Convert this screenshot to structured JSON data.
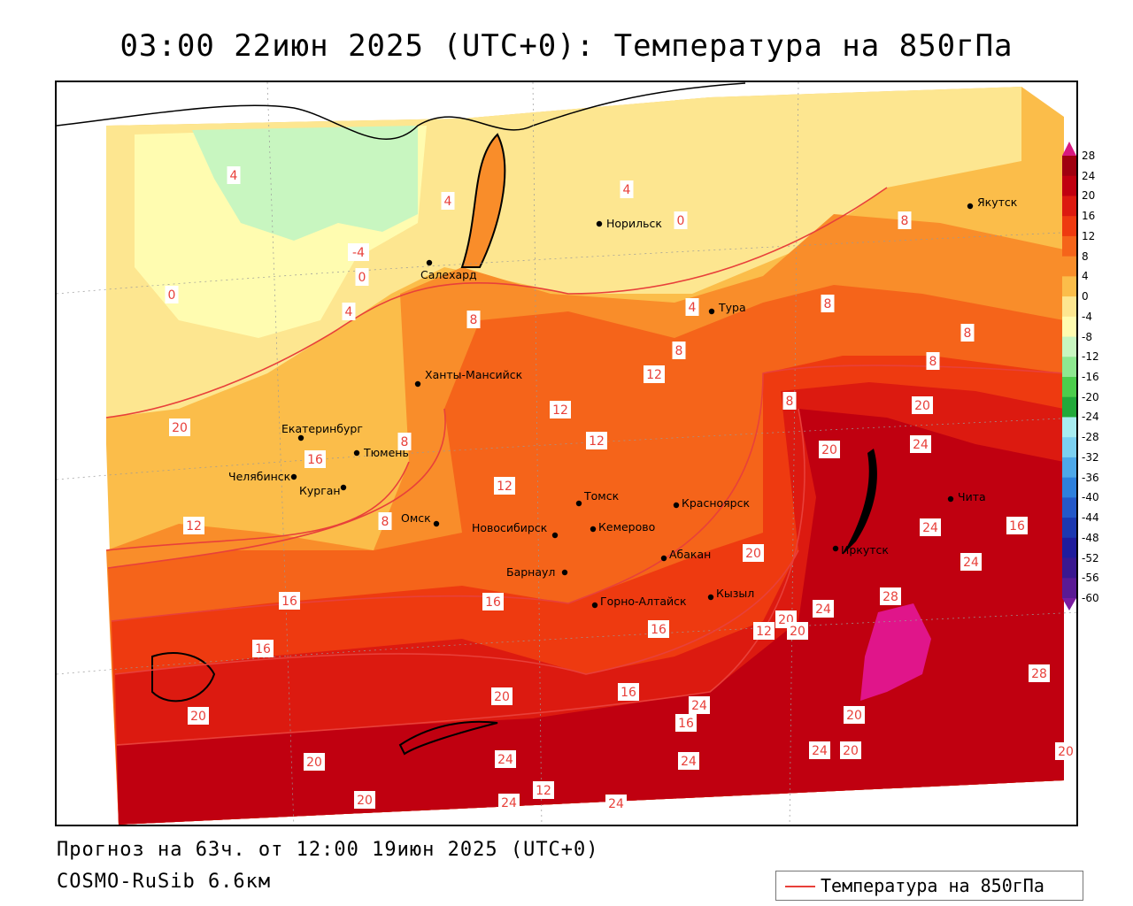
{
  "header": {
    "title": "03:00 22июн 2025 (UTC+0): Температура на 850гПа"
  },
  "footer": {
    "forecast": "Прогноз на 63ч. от 12:00 19июн 2025 (UTC+0)",
    "model": "COSMO-RuSib 6.6км"
  },
  "legend": {
    "label": "Температура на 850гПа",
    "line_color": "#e8403a"
  },
  "colorbar": {
    "ticks": [
      "28",
      "24",
      "20",
      "16",
      "12",
      "8",
      "4",
      "0",
      "-4",
      "-8",
      "-12",
      "-16",
      "-20",
      "-24",
      "-28",
      "-32",
      "-36",
      "-40",
      "-44",
      "-48",
      "-52",
      "-56",
      "-60"
    ],
    "colors": [
      "#a00010",
      "#c00010",
      "#dc1a10",
      "#ee3a10",
      "#f5641a",
      "#f98d2a",
      "#fbbd4a",
      "#fde690",
      "#fffcb0",
      "#c8f6c0",
      "#8ee890",
      "#4ccd4c",
      "#22a93a",
      "#a8ecf0",
      "#7cd0f0",
      "#4ea8e8",
      "#2e80dc",
      "#2458c8",
      "#1c38b0",
      "#201c9c",
      "#3a1890",
      "#5a1a94",
      "#7a1ca0"
    ]
  },
  "cities": [
    {
      "name": "Норильск"
    },
    {
      "name": "Якутск"
    },
    {
      "name": "Салехард"
    },
    {
      "name": "Тура"
    },
    {
      "name": "Ханты-Мансийск"
    },
    {
      "name": "Екатеринбург"
    },
    {
      "name": "Тюмень"
    },
    {
      "name": "Челябинск"
    },
    {
      "name": "Курган"
    },
    {
      "name": "Омск"
    },
    {
      "name": "Новосибирск"
    },
    {
      "name": "Томск"
    },
    {
      "name": "Кемерово"
    },
    {
      "name": "Красноярск"
    },
    {
      "name": "Абакан"
    },
    {
      "name": "Барнаул"
    },
    {
      "name": "Горно-Алтайск"
    },
    {
      "name": "Кызыл"
    },
    {
      "name": "Иркутск"
    },
    {
      "name": "Чита"
    }
  ],
  "contour_labels": [
    "4",
    "4",
    "-4",
    "0",
    "0",
    "4",
    "0",
    "4",
    "4",
    "8",
    "8",
    "8",
    "8",
    "12",
    "12",
    "12",
    "12",
    "12",
    "16",
    "16",
    "16",
    "20",
    "20",
    "24",
    "24",
    "24",
    "24",
    "28",
    "28",
    "20",
    "20",
    "20",
    "20",
    "20",
    "24",
    "24",
    "24",
    "24",
    "24",
    "20",
    "20",
    "12",
    "16",
    "16",
    "20",
    "20",
    "20",
    "24",
    "16",
    "16",
    "12",
    "8",
    "8",
    "8",
    "8",
    "8",
    "20",
    "16"
  ]
}
